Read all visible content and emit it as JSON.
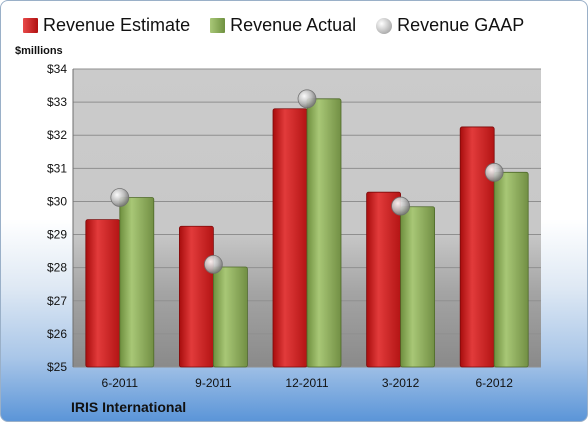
{
  "legend": {
    "estimate": "Revenue Estimate",
    "actual": "Revenue Actual",
    "gaap": "Revenue GAAP"
  },
  "company": "IRIS International",
  "colors": {
    "estimate": "#cc1f1f",
    "actual": "#8caf57",
    "gaap": "#c8c8c8"
  },
  "chart_data": {
    "type": "bar",
    "title": "",
    "ylabel": "$millions",
    "xlabel": "",
    "ylim": [
      25,
      34
    ],
    "yticks": [
      25,
      26,
      27,
      28,
      29,
      30,
      31,
      32,
      33,
      34
    ],
    "ytick_labels": [
      "$25",
      "$26",
      "$27",
      "$28",
      "$29",
      "$30",
      "$31",
      "$32",
      "$33",
      "$34"
    ],
    "categories": [
      "6-2011",
      "9-2011",
      "12-2011",
      "3-2012",
      "6-2012"
    ],
    "series": [
      {
        "name": "Revenue Estimate",
        "type": "bar",
        "values": [
          29.45,
          29.25,
          32.8,
          30.28,
          32.25
        ]
      },
      {
        "name": "Revenue Actual",
        "type": "bar",
        "values": [
          30.12,
          28.02,
          33.1,
          29.84,
          30.88
        ]
      },
      {
        "name": "Revenue GAAP",
        "type": "marker",
        "values": [
          30.12,
          28.1,
          33.1,
          29.86,
          30.88
        ]
      }
    ],
    "grid": true,
    "legend_position": "top"
  }
}
